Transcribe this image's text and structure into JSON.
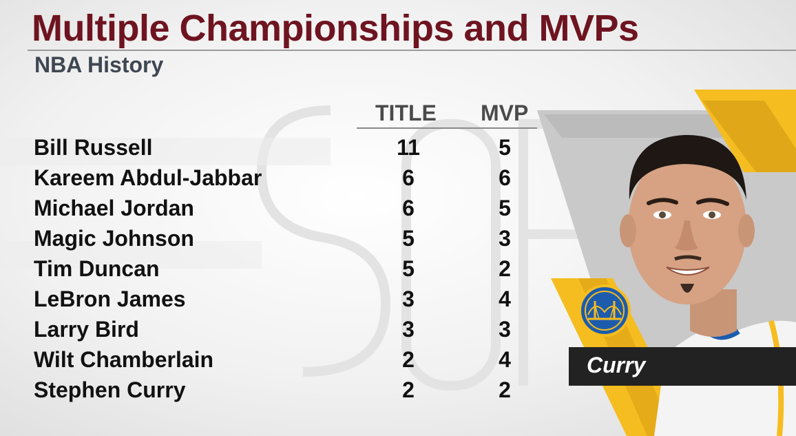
{
  "header": {
    "title": "Multiple Championships and MVPs",
    "subtitle": "NBA History"
  },
  "table": {
    "columns": [
      "TITLE",
      "MVP"
    ],
    "rows": [
      {
        "name": "Bill Russell",
        "title": "11",
        "mvp": "5"
      },
      {
        "name": "Kareem Abdul-Jabbar",
        "title": "6",
        "mvp": "6"
      },
      {
        "name": "Michael Jordan",
        "title": "6",
        "mvp": "5"
      },
      {
        "name": "Magic Johnson",
        "title": "5",
        "mvp": "3"
      },
      {
        "name": "Tim Duncan",
        "title": "5",
        "mvp": "2"
      },
      {
        "name": "LeBron James",
        "title": "3",
        "mvp": "4"
      },
      {
        "name": "Larry Bird",
        "title": "3",
        "mvp": "3"
      },
      {
        "name": "Wilt Chamberlain",
        "title": "2",
        "mvp": "4"
      },
      {
        "name": "Stephen Curry",
        "title": "2",
        "mvp": "2"
      }
    ]
  },
  "player_panel": {
    "name_tag": "Curry",
    "team_logo_icon": "warriors-logo-icon",
    "photo_icon": "player-headshot-icon"
  },
  "colors": {
    "title": "#6e1420",
    "subtitle": "#3f4752",
    "accent_gold": "#f5bd1f",
    "team_blue": "#1d5cad",
    "name_tag_bg": "#222222"
  }
}
